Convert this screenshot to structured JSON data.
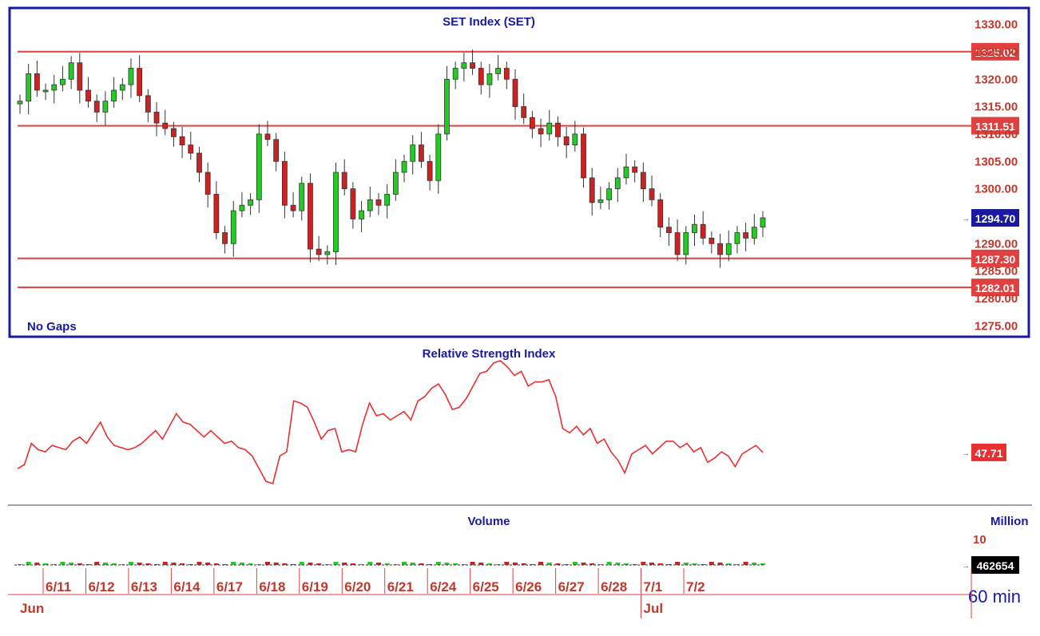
{
  "colors": {
    "frame": "#1a1aa0",
    "level_line": "#e04040",
    "up_candle": "#22cc22",
    "down_candle": "#cc2222",
    "rsi_line": "#e83030",
    "axis_text": "#c0392b",
    "title_text": "#1a1aa0",
    "price_badge": "#1a1aa0",
    "volume_badge": "#000000",
    "volume_bar_text": "#1a1aa0"
  },
  "price_panel": {
    "title": "SET  Index  (SET)",
    "gaps_label": "No  Gaps",
    "y_ticks": [
      "1330.00",
      "1325.00",
      "1320.00",
      "1315.00",
      "1310.00",
      "1305.00",
      "1300.00",
      "1290.00",
      "1285.00",
      "1280.00",
      "1275.00"
    ],
    "level_labels": [
      "1325.02",
      "1311.51",
      "1287.30",
      "1282.01"
    ],
    "current_price": "1294.70"
  },
  "rsi_panel": {
    "title": "Relative  Strength  Index",
    "current_value": "47.71"
  },
  "volume_panel": {
    "title": "Volume",
    "unit": "Million",
    "scale_top": "10",
    "current_value": "462654"
  },
  "time_axis": {
    "day_labels": [
      "6/11",
      "6/12",
      "6/13",
      "6/14",
      "6/17",
      "6/18",
      "6/19",
      "6/20",
      "6/21",
      "6/24",
      "6/25",
      "6/26",
      "6/27",
      "6/28",
      "7/1",
      "7/2"
    ],
    "month_labels": [
      "Jun",
      "Jul"
    ],
    "interval": "60  min"
  },
  "chart_data": {
    "type": "candlestick",
    "interval": "60 min",
    "y_range": [
      1273,
      1333
    ],
    "horizontal_levels": [
      1325.02,
      1311.51,
      1287.3,
      1282.01
    ],
    "last_close": 1294.7,
    "close": [
      1316,
      1321,
      1318,
      1318,
      1319,
      1320,
      1323,
      1318,
      1316,
      1314,
      1316,
      1318,
      1319,
      1322,
      1317,
      1314,
      1312,
      1311,
      1309.5,
      1308,
      1306.5,
      1303,
      1299,
      1292,
      1290,
      1296,
      1297,
      1298,
      1310,
      1309,
      1305,
      1297,
      1296,
      1301,
      1289,
      1288,
      1288.5,
      1303,
      1300,
      1294.5,
      1296,
      1298,
      1297,
      1299,
      1303,
      1305,
      1308,
      1305,
      1301.5,
      1310,
      1320,
      1322,
      1323,
      1322,
      1319,
      1321,
      1322,
      1320,
      1315,
      1313,
      1311,
      1310,
      1312,
      1309.5,
      1308,
      1310,
      1302,
      1297.5,
      1298,
      1300,
      1302,
      1304,
      1303,
      1300,
      1298,
      1293,
      1292,
      1288,
      1292,
      1293.5,
      1291,
      1290,
      1288,
      1290,
      1292,
      1291,
      1293,
      1294.7
    ],
    "rsi": [
      40,
      42,
      52,
      49,
      48,
      51,
      50,
      49,
      53,
      55,
      52,
      57,
      62,
      55,
      51,
      50,
      49,
      50,
      52,
      55,
      58,
      54,
      60,
      66,
      62,
      61,
      58,
      55,
      58,
      55,
      52,
      53,
      50,
      49,
      46,
      40,
      34,
      33,
      46,
      48,
      72,
      71,
      69,
      62,
      54,
      58,
      59,
      48,
      49,
      48,
      61,
      71,
      65,
      66,
      63,
      65,
      67,
      63,
      72,
      74,
      78,
      80,
      75,
      68,
      69,
      73,
      79,
      85,
      86,
      90,
      91,
      88,
      84,
      86,
      79,
      81,
      81,
      82,
      74,
      59,
      57,
      60,
      56,
      59,
      52,
      54,
      48,
      44,
      38,
      47,
      49,
      51,
      47,
      50,
      53,
      53,
      50,
      52,
      48,
      50,
      43,
      45,
      48,
      46,
      41,
      47,
      49,
      51,
      47.71
    ]
  }
}
